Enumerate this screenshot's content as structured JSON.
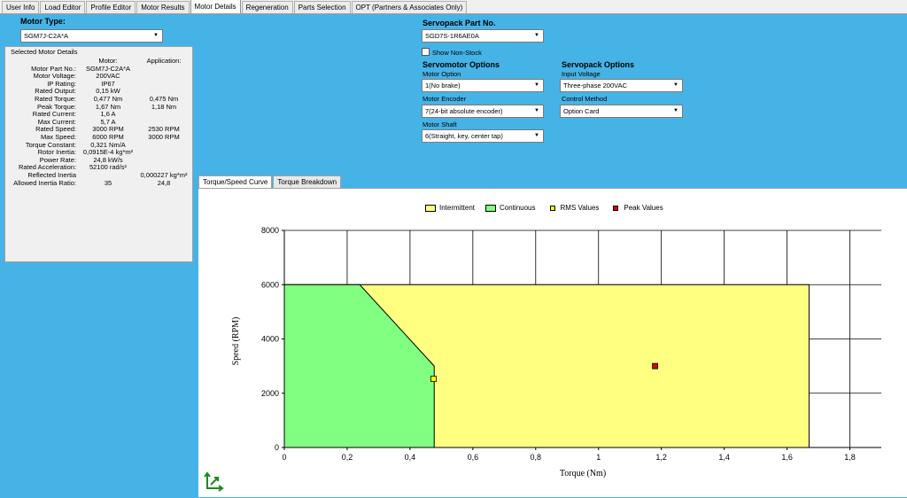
{
  "tabs": [
    "User Info",
    "Load Editor",
    "Profile Editor",
    "Motor Results",
    "Motor Details",
    "Regeneration",
    "Parts Selection",
    "OPT (Partners & Associates Only)"
  ],
  "active_tab": "Motor Details",
  "motor_type": {
    "label": "Motor Type:",
    "value": "SGM7J-C2A*A"
  },
  "selected_motor": {
    "title": "Selected Motor Details",
    "col_motor": "Motor:",
    "col_application": "Application:",
    "rows": [
      {
        "label": "Motor Part No.:",
        "motor": "SGM7J-C2A*A",
        "app": ""
      },
      {
        "label": "Motor Voltage:",
        "motor": "200VAC",
        "app": ""
      },
      {
        "label": "IP Rating:",
        "motor": "IP67",
        "app": ""
      },
      {
        "label": "Rated Output:",
        "motor": "0,15 kW",
        "app": ""
      },
      {
        "label": "Rated Torque:",
        "motor": "0,477 Nm",
        "app": "0,475 Nm"
      },
      {
        "label": "Peak Torque:",
        "motor": "1,67 Nm",
        "app": "1,18 Nm"
      },
      {
        "label": "Rated Current:",
        "motor": "1,6 A",
        "app": ""
      },
      {
        "label": "Max Current:",
        "motor": "5,7 A",
        "app": ""
      },
      {
        "label": "Rated Speed:",
        "motor": "3000 RPM",
        "app": "2530 RPM"
      },
      {
        "label": "Max Speed:",
        "motor": "6000 RPM",
        "app": "3000 RPM"
      },
      {
        "label": "Torque Constant:",
        "motor": "0,321 Nm/A",
        "app": ""
      },
      {
        "label": "Rotor Inertia:",
        "motor": "0,0915E-4 kg*m²",
        "app": ""
      },
      {
        "label": "Power Rate:",
        "motor": "24,8 kW/s",
        "app": ""
      },
      {
        "label": "Rated Acceleration:",
        "motor": "52100 rad/s²",
        "app": ""
      },
      {
        "label": "Reflected Inertia",
        "motor": "",
        "app": "0,000227 kg*m²"
      },
      {
        "label": "Allowed Inertia Ratio:",
        "motor": "35",
        "app": "24,8"
      }
    ]
  },
  "servopack": {
    "part_label": "Servopack Part No.",
    "part_value": "SGD7S-1R6AE0A",
    "show_non_stock": "Show Non-Stock"
  },
  "servomotor_options": {
    "title": "Servomotor Options",
    "motor_option_label": "Motor Option",
    "motor_option_value": "1(No brake)",
    "encoder_label": "Motor Encoder",
    "encoder_value": "7(24-bit absolute encoder)",
    "shaft_label": "Motor Shaft",
    "shaft_value": "6(Straight, key, center tap)"
  },
  "servopack_options": {
    "title": "Servopack Options",
    "input_voltage_label": "Input Voltage",
    "input_voltage_value": "Three-phase 200VAC",
    "control_method_label": "Control Method",
    "control_method_value": "Option Card"
  },
  "graph_tabs": [
    "Torque/Speed Curve",
    "Torque Breakdown"
  ],
  "chart_data": {
    "type": "area",
    "xlabel": "Torque (Nm)",
    "ylabel": "Speed (RPM)",
    "xlim": [
      0,
      1.9
    ],
    "ylim": [
      0,
      8000
    ],
    "xticks": [
      "0",
      "0,2",
      "0,4",
      "0,6",
      "0,8",
      "1",
      "1,2",
      "1,4",
      "1,6",
      "1,8"
    ],
    "yticks": [
      "0",
      "2000",
      "4000",
      "6000",
      "8000"
    ],
    "legend_position": "top",
    "series": [
      {
        "name": "Intermittent",
        "color": "#ffff80",
        "points": [
          [
            0,
            0
          ],
          [
            0,
            6000
          ],
          [
            1.67,
            6000
          ],
          [
            1.67,
            0
          ]
        ]
      },
      {
        "name": "Continuous",
        "color": "#80ff80",
        "points": [
          [
            0,
            0
          ],
          [
            0,
            6000
          ],
          [
            0.24,
            6000
          ],
          [
            0.477,
            3000
          ],
          [
            0.477,
            0
          ]
        ]
      },
      {
        "name": "RMS Values",
        "color": "#ffff00",
        "points": [
          [
            0.475,
            2530
          ]
        ]
      },
      {
        "name": "Peak Values",
        "color": "#e00000",
        "points": [
          [
            1.18,
            3000
          ]
        ]
      }
    ]
  }
}
